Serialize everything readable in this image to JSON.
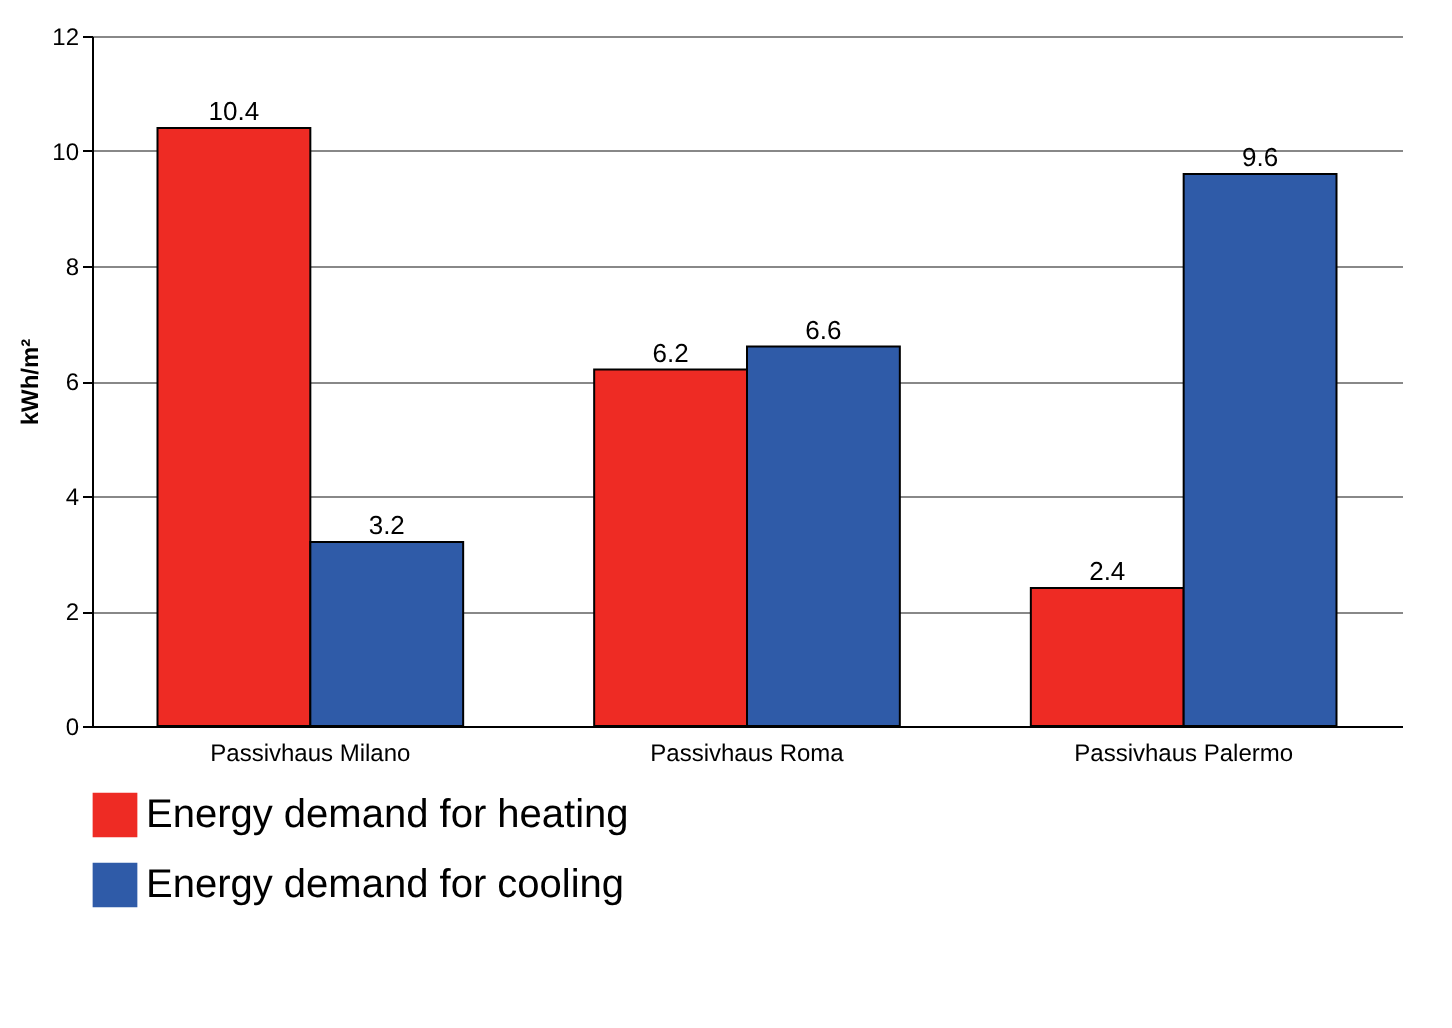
{
  "chart_data": {
    "type": "bar",
    "ylabel": "kWh/m²",
    "categories": [
      "Passivhaus Milano",
      "Passivhaus Roma",
      "Passivhaus Palermo"
    ],
    "series": [
      {
        "name": "Energy demand for heating",
        "color": "#ee2b24",
        "values": [
          10.4,
          6.2,
          2.4
        ]
      },
      {
        "name": "Energy demand for cooling",
        "color": "#2f5ba8",
        "values": [
          3.2,
          6.6,
          9.6
        ]
      }
    ],
    "ylim": [
      0,
      12
    ],
    "yticks": [
      0,
      2,
      4,
      6,
      8,
      10,
      12
    ],
    "grid": "y",
    "legend": "bottom left",
    "data_labels": true
  }
}
